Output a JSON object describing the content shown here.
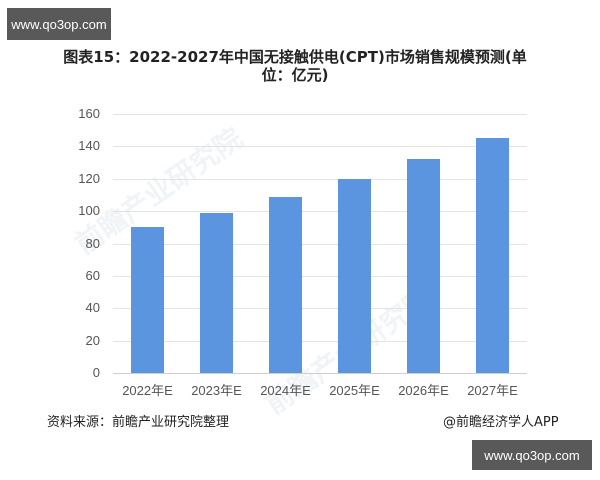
{
  "watermark": {
    "top": "www.qo3op.com",
    "bottom": "www.qo3op.com",
    "background_ghost": "前瞻产业研究院"
  },
  "footer": {
    "source": "资料来源：前瞻产业研究院整理",
    "credit": "@前瞻经济学人APP"
  },
  "colors": {
    "bar": "#5b95e0",
    "grid": "#e3e3e3",
    "watermark_bg": "#595959"
  },
  "chart_data": {
    "type": "bar",
    "title": "图表15：2022-2027年中国无接触供电(CPT)市场销售规模预测(单位：亿元)",
    "title_lines": [
      "图表15：2022-2027年中国无接触供电(CPT)市场销售规模预测(单",
      "位：亿元)"
    ],
    "categories": [
      "2022年E",
      "2023年E",
      "2024年E",
      "2025年E",
      "2026年E",
      "2027年E"
    ],
    "values": [
      90,
      99,
      109,
      120,
      132,
      145
    ],
    "xlabel": "",
    "ylabel": "",
    "unit": "亿元",
    "ylim": [
      0,
      160
    ],
    "yticks": [
      0,
      20,
      40,
      60,
      80,
      100,
      120,
      140,
      160
    ],
    "grid": true,
    "legend": null
  }
}
